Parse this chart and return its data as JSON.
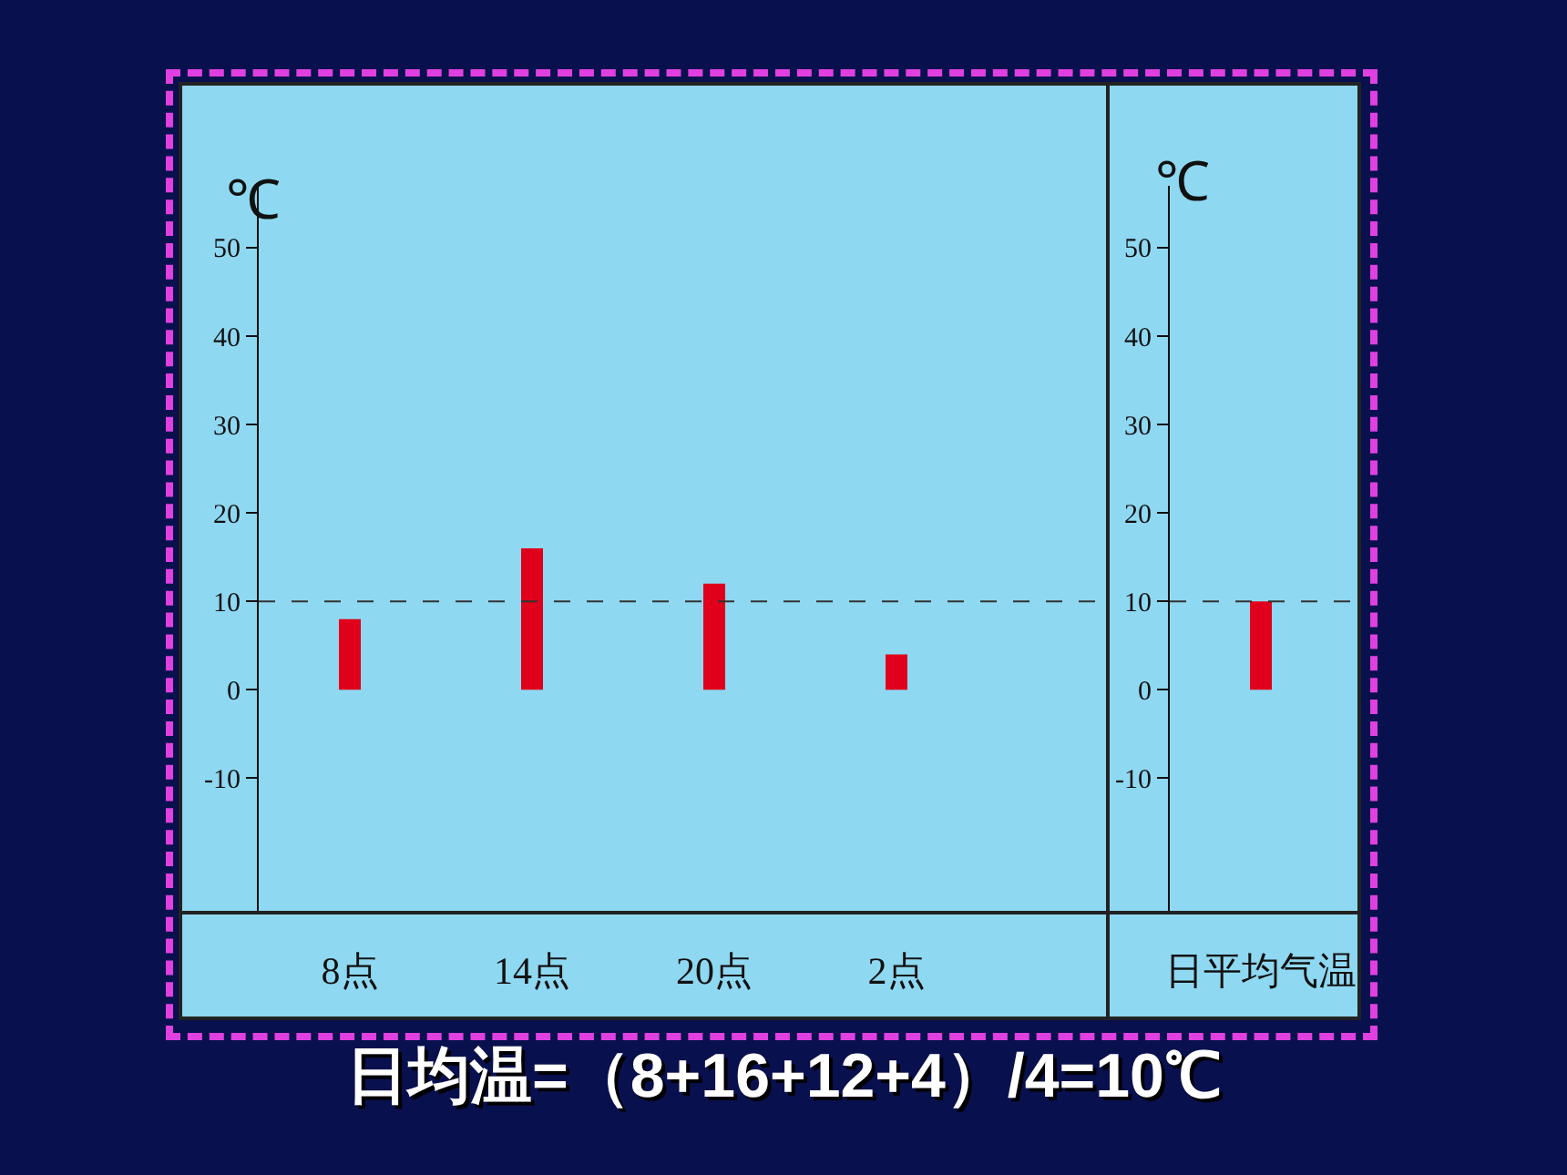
{
  "chart_data": [
    {
      "type": "bar",
      "ylabel": "℃",
      "categories": [
        "8点",
        "14点",
        "20点",
        "2点"
      ],
      "values": [
        8,
        16,
        12,
        4
      ],
      "color": "#e0001b",
      "ylim": [
        -25,
        57
      ],
      "yticks": [
        -10,
        0,
        10,
        20,
        30,
        40,
        50
      ],
      "ref_lines": [
        {
          "axis": "y",
          "value": 10,
          "line_style": "dashed",
          "color": "#333333"
        }
      ],
      "annotations": [
        "日均温=（8+16+12+4）/4=10℃"
      ]
    },
    {
      "type": "bar",
      "ylabel": "℃",
      "categories": [
        "日平均气温"
      ],
      "values": [
        10
      ],
      "color": "#e0001b",
      "ylim": [
        -25,
        57
      ],
      "yticks": [
        -10,
        0,
        10,
        20,
        30,
        40,
        50
      ],
      "ref_lines": [
        {
          "axis": "y",
          "value": 10,
          "line_style": "dashed",
          "color": "#333333"
        }
      ]
    }
  ]
}
